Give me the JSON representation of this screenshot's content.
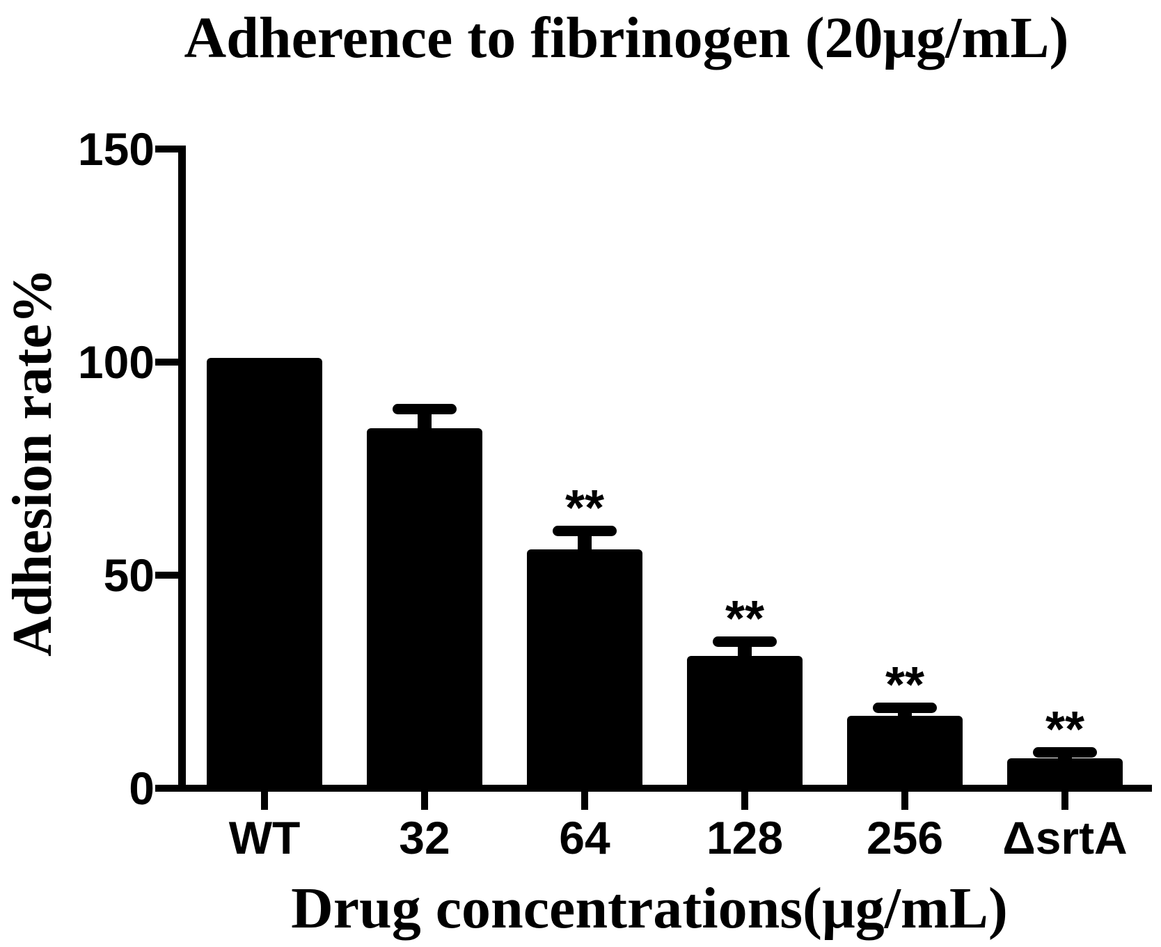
{
  "chart_data": {
    "type": "bar",
    "title": "Adherence to fibrinogen (20μg/mL)",
    "ylabel": "Adhesion rate%",
    "xlabel": "Drug concentrations(μg/mL)",
    "categories": [
      "WT",
      "32",
      "64",
      "128",
      "256",
      "ΔsrtA"
    ],
    "values": [
      101,
      84.5,
      56,
      31,
      17,
      7
    ],
    "errors_upper": [
      0,
      4.5,
      4.5,
      3.5,
      2,
      1.5
    ],
    "significance": [
      "",
      "",
      "**",
      "**",
      "**",
      "**"
    ],
    "ylim": [
      0,
      150
    ],
    "yticks": [
      0,
      50,
      100,
      150
    ],
    "bar_color": "#000000",
    "axis_color": "#000000",
    "background_color": "#ffffff",
    "grid": false,
    "legend": false,
    "error_bars": "upper-only with rounded caps"
  }
}
